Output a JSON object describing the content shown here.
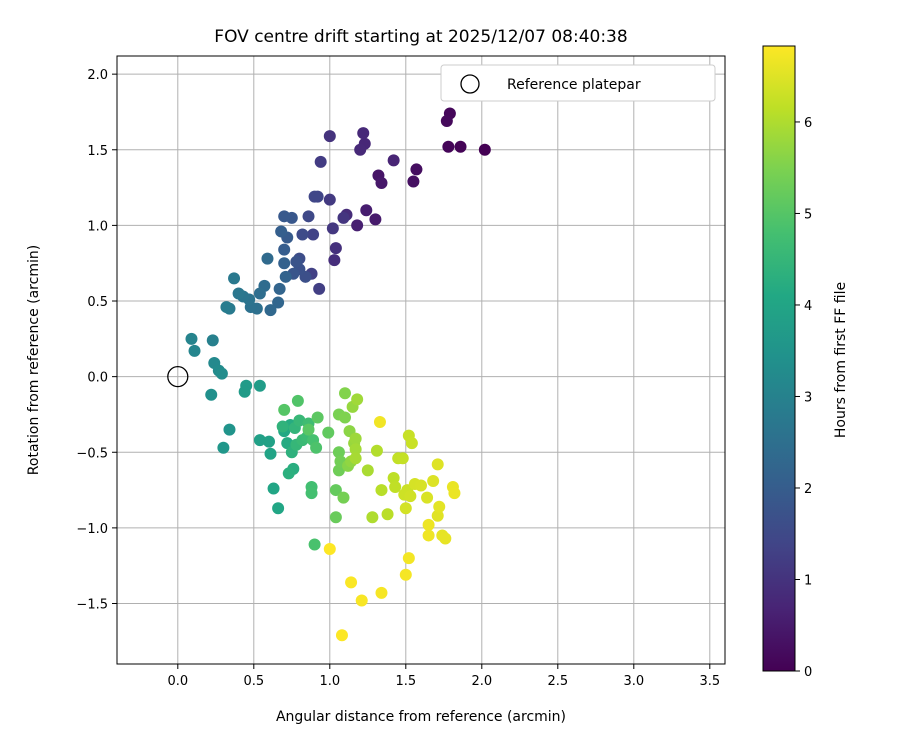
{
  "chart_data": {
    "type": "scatter",
    "title": "FOV centre drift starting at 2025/12/07 08:40:38",
    "xlabel": "Angular distance from reference (arcmin)",
    "ylabel": "Rotation from reference (arcmin)",
    "xlim": [
      -0.4,
      3.6
    ],
    "ylim": [
      -1.9,
      2.12
    ],
    "x_ticks": [
      "0.0",
      "0.5",
      "1.0",
      "1.5",
      "2.0",
      "2.5",
      "3.0",
      "3.5"
    ],
    "y_ticks": [
      "−1.5",
      "−1.0",
      "−0.5",
      "0.0",
      "0.5",
      "1.0",
      "1.5",
      "2.0"
    ],
    "grid": true,
    "legend": {
      "position": "top-right",
      "label": "Reference platepar"
    },
    "colorbar": {
      "label": "Hours from first FF file",
      "min": 0,
      "max": 6.83,
      "ticks": [
        "0",
        "1",
        "2",
        "3",
        "4",
        "5",
        "6"
      ],
      "colormap": "viridis"
    },
    "reference_point": {
      "x": 0.0,
      "y": 0.0
    },
    "series": [
      {
        "points": [
          {
            "x": 2.02,
            "y": 1.5,
            "c": 0.0
          },
          {
            "x": 1.86,
            "y": 1.52,
            "c": 0.05
          },
          {
            "x": 1.78,
            "y": 1.52,
            "c": 0.08
          },
          {
            "x": 1.79,
            "y": 1.74,
            "c": 0.12
          },
          {
            "x": 1.77,
            "y": 1.69,
            "c": 0.15
          },
          {
            "x": 1.57,
            "y": 1.37,
            "c": 0.25
          },
          {
            "x": 1.55,
            "y": 1.29,
            "c": 0.3
          },
          {
            "x": 1.32,
            "y": 1.33,
            "c": 0.4
          },
          {
            "x": 1.34,
            "y": 1.28,
            "c": 0.45
          },
          {
            "x": 1.3,
            "y": 1.04,
            "c": 0.5
          },
          {
            "x": 1.24,
            "y": 1.1,
            "c": 0.55
          },
          {
            "x": 1.18,
            "y": 1.0,
            "c": 0.6
          },
          {
            "x": 1.42,
            "y": 1.43,
            "c": 0.7
          },
          {
            "x": 1.23,
            "y": 1.54,
            "c": 0.75
          },
          {
            "x": 1.2,
            "y": 1.5,
            "c": 0.78
          },
          {
            "x": 1.22,
            "y": 1.61,
            "c": 0.8
          },
          {
            "x": 1.11,
            "y": 1.07,
            "c": 0.85
          },
          {
            "x": 1.03,
            "y": 0.77,
            "c": 0.9
          },
          {
            "x": 1.04,
            "y": 0.85,
            "c": 0.93
          },
          {
            "x": 1.0,
            "y": 1.59,
            "c": 1.0
          },
          {
            "x": 1.09,
            "y": 1.05,
            "c": 1.05
          },
          {
            "x": 1.02,
            "y": 0.98,
            "c": 1.1
          },
          {
            "x": 1.0,
            "y": 1.17,
            "c": 1.15
          },
          {
            "x": 0.94,
            "y": 1.42,
            "c": 1.2
          },
          {
            "x": 0.93,
            "y": 0.58,
            "c": 1.25
          },
          {
            "x": 0.88,
            "y": 0.68,
            "c": 1.3
          },
          {
            "x": 0.89,
            "y": 0.94,
            "c": 1.35
          },
          {
            "x": 0.92,
            "y": 1.19,
            "c": 1.4
          },
          {
            "x": 0.9,
            "y": 1.19,
            "c": 1.45
          },
          {
            "x": 0.86,
            "y": 1.06,
            "c": 1.5
          },
          {
            "x": 0.82,
            "y": 0.94,
            "c": 1.55
          },
          {
            "x": 0.8,
            "y": 0.78,
            "c": 1.6
          },
          {
            "x": 0.84,
            "y": 0.66,
            "c": 1.65
          },
          {
            "x": 0.8,
            "y": 0.71,
            "c": 1.7
          },
          {
            "x": 0.78,
            "y": 0.76,
            "c": 1.75
          },
          {
            "x": 0.76,
            "y": 0.68,
            "c": 1.8
          },
          {
            "x": 0.75,
            "y": 1.05,
            "c": 1.85
          },
          {
            "x": 0.7,
            "y": 1.06,
            "c": 1.9
          },
          {
            "x": 0.72,
            "y": 0.92,
            "c": 1.95
          },
          {
            "x": 0.7,
            "y": 0.84,
            "c": 2.0
          },
          {
            "x": 0.68,
            "y": 0.96,
            "c": 2.05
          },
          {
            "x": 0.7,
            "y": 0.75,
            "c": 2.1
          },
          {
            "x": 0.71,
            "y": 0.66,
            "c": 2.15
          },
          {
            "x": 0.67,
            "y": 0.58,
            "c": 2.2
          },
          {
            "x": 0.66,
            "y": 0.49,
            "c": 2.25
          },
          {
            "x": 0.61,
            "y": 0.44,
            "c": 2.3
          },
          {
            "x": 0.59,
            "y": 0.78,
            "c": 2.35
          },
          {
            "x": 0.57,
            "y": 0.6,
            "c": 2.4
          },
          {
            "x": 0.54,
            "y": 0.55,
            "c": 2.45
          },
          {
            "x": 0.52,
            "y": 0.45,
            "c": 2.5
          },
          {
            "x": 0.48,
            "y": 0.46,
            "c": 2.55
          },
          {
            "x": 0.47,
            "y": 0.51,
            "c": 2.6
          },
          {
            "x": 0.43,
            "y": 0.53,
            "c": 2.65
          },
          {
            "x": 0.4,
            "y": 0.55,
            "c": 2.7
          },
          {
            "x": 0.37,
            "y": 0.65,
            "c": 2.75
          },
          {
            "x": 0.34,
            "y": 0.45,
            "c": 2.8
          },
          {
            "x": 0.32,
            "y": 0.46,
            "c": 2.85
          },
          {
            "x": 0.23,
            "y": 0.24,
            "c": 2.95
          },
          {
            "x": 0.09,
            "y": 0.25,
            "c": 3.05
          },
          {
            "x": 0.11,
            "y": 0.17,
            "c": 3.1
          },
          {
            "x": 0.24,
            "y": 0.09,
            "c": 3.2
          },
          {
            "x": 0.27,
            "y": 0.04,
            "c": 3.25
          },
          {
            "x": 0.29,
            "y": 0.02,
            "c": 3.3
          },
          {
            "x": 0.22,
            "y": -0.12,
            "c": 3.4
          },
          {
            "x": 0.34,
            "y": -0.35,
            "c": 3.5
          },
          {
            "x": 0.3,
            "y": -0.47,
            "c": 3.6
          },
          {
            "x": 0.45,
            "y": -0.06,
            "c": 3.7
          },
          {
            "x": 0.44,
            "y": -0.1,
            "c": 3.72
          },
          {
            "x": 0.54,
            "y": -0.06,
            "c": 3.75
          },
          {
            "x": 0.54,
            "y": -0.42,
            "c": 3.85
          },
          {
            "x": 0.6,
            "y": -0.43,
            "c": 3.9
          },
          {
            "x": 0.61,
            "y": -0.51,
            "c": 3.95
          },
          {
            "x": 0.63,
            "y": -0.74,
            "c": 4.0
          },
          {
            "x": 0.66,
            "y": -0.87,
            "c": 4.05
          },
          {
            "x": 0.7,
            "y": -0.36,
            "c": 4.1
          },
          {
            "x": 0.72,
            "y": -0.44,
            "c": 4.15
          },
          {
            "x": 0.74,
            "y": -0.32,
            "c": 4.2
          },
          {
            "x": 0.76,
            "y": -0.61,
            "c": 4.25
          },
          {
            "x": 0.73,
            "y": -0.64,
            "c": 4.3
          },
          {
            "x": 0.75,
            "y": -0.5,
            "c": 4.35
          },
          {
            "x": 0.69,
            "y": -0.33,
            "c": 4.4
          },
          {
            "x": 0.77,
            "y": -0.34,
            "c": 4.45
          },
          {
            "x": 0.78,
            "y": -0.45,
            "c": 4.5
          },
          {
            "x": 0.8,
            "y": -0.29,
            "c": 4.55
          },
          {
            "x": 0.82,
            "y": -0.42,
            "c": 4.6
          },
          {
            "x": 0.85,
            "y": -0.4,
            "c": 4.65
          },
          {
            "x": 0.86,
            "y": -0.31,
            "c": 4.7
          },
          {
            "x": 0.88,
            "y": -0.73,
            "c": 4.75
          },
          {
            "x": 0.88,
            "y": -0.77,
            "c": 4.78
          },
          {
            "x": 0.89,
            "y": -0.42,
            "c": 4.8
          },
          {
            "x": 0.9,
            "y": -1.11,
            "c": 4.85
          },
          {
            "x": 0.91,
            "y": -0.47,
            "c": 4.9
          },
          {
            "x": 0.79,
            "y": -0.16,
            "c": 4.95
          },
          {
            "x": 0.7,
            "y": -0.22,
            "c": 5.0
          },
          {
            "x": 0.86,
            "y": -0.35,
            "c": 5.05
          },
          {
            "x": 0.92,
            "y": -0.27,
            "c": 5.1
          },
          {
            "x": 0.99,
            "y": -0.37,
            "c": 5.15
          },
          {
            "x": 1.04,
            "y": -0.75,
            "c": 5.2
          },
          {
            "x": 1.04,
            "y": -0.93,
            "c": 5.25
          },
          {
            "x": 1.06,
            "y": -0.5,
            "c": 5.3
          },
          {
            "x": 1.06,
            "y": -0.62,
            "c": 5.33
          },
          {
            "x": 1.07,
            "y": -0.56,
            "c": 5.36
          },
          {
            "x": 1.09,
            "y": -0.8,
            "c": 5.4
          },
          {
            "x": 1.06,
            "y": -0.25,
            "c": 5.45
          },
          {
            "x": 1.1,
            "y": -0.27,
            "c": 5.5
          },
          {
            "x": 1.1,
            "y": -0.11,
            "c": 5.55
          },
          {
            "x": 1.12,
            "y": -0.59,
            "c": 5.6
          },
          {
            "x": 1.13,
            "y": -0.36,
            "c": 5.65
          },
          {
            "x": 1.14,
            "y": -0.56,
            "c": 5.7
          },
          {
            "x": 1.15,
            "y": -0.2,
            "c": 5.75
          },
          {
            "x": 1.16,
            "y": -0.44,
            "c": 5.78
          },
          {
            "x": 1.17,
            "y": -0.41,
            "c": 5.82
          },
          {
            "x": 1.18,
            "y": -0.15,
            "c": 5.85
          },
          {
            "x": 1.17,
            "y": -0.48,
            "c": 5.88
          },
          {
            "x": 1.17,
            "y": -0.54,
            "c": 5.92
          },
          {
            "x": 1.25,
            "y": -0.62,
            "c": 5.95
          },
          {
            "x": 1.28,
            "y": -0.93,
            "c": 6.0
          },
          {
            "x": 1.31,
            "y": -0.49,
            "c": 6.05
          },
          {
            "x": 1.34,
            "y": -0.75,
            "c": 6.1
          },
          {
            "x": 1.38,
            "y": -0.91,
            "c": 6.12
          },
          {
            "x": 1.42,
            "y": -0.67,
            "c": 6.15
          },
          {
            "x": 1.43,
            "y": -0.73,
            "c": 6.18
          },
          {
            "x": 1.45,
            "y": -0.54,
            "c": 6.2
          },
          {
            "x": 1.48,
            "y": -0.54,
            "c": 6.22
          },
          {
            "x": 1.52,
            "y": -0.39,
            "c": 6.25
          },
          {
            "x": 1.54,
            "y": -0.44,
            "c": 6.28
          },
          {
            "x": 1.51,
            "y": -0.75,
            "c": 6.3
          },
          {
            "x": 1.49,
            "y": -0.78,
            "c": 6.32
          },
          {
            "x": 1.53,
            "y": -0.79,
            "c": 6.35
          },
          {
            "x": 1.5,
            "y": -0.87,
            "c": 6.38
          },
          {
            "x": 1.56,
            "y": -0.71,
            "c": 6.4
          },
          {
            "x": 1.6,
            "y": -0.72,
            "c": 6.42
          },
          {
            "x": 1.64,
            "y": -0.8,
            "c": 6.45
          },
          {
            "x": 1.68,
            "y": -0.69,
            "c": 6.48
          },
          {
            "x": 1.71,
            "y": -0.58,
            "c": 6.5
          },
          {
            "x": 1.71,
            "y": -0.92,
            "c": 6.52
          },
          {
            "x": 1.72,
            "y": -0.86,
            "c": 6.55
          },
          {
            "x": 1.74,
            "y": -1.05,
            "c": 6.58
          },
          {
            "x": 1.76,
            "y": -1.07,
            "c": 6.6
          },
          {
            "x": 1.81,
            "y": -0.73,
            "c": 6.62
          },
          {
            "x": 1.82,
            "y": -0.77,
            "c": 6.64
          },
          {
            "x": 1.65,
            "y": -0.98,
            "c": 6.66
          },
          {
            "x": 1.65,
            "y": -1.05,
            "c": 6.68
          },
          {
            "x": 1.33,
            "y": -0.3,
            "c": 6.7
          },
          {
            "x": 1.52,
            "y": -1.2,
            "c": 6.72
          },
          {
            "x": 1.5,
            "y": -1.31,
            "c": 6.74
          },
          {
            "x": 1.34,
            "y": -1.43,
            "c": 6.76
          },
          {
            "x": 1.21,
            "y": -1.48,
            "c": 6.78
          },
          {
            "x": 1.14,
            "y": -1.36,
            "c": 6.8
          },
          {
            "x": 1.08,
            "y": -1.71,
            "c": 6.82
          },
          {
            "x": 1.0,
            "y": -1.14,
            "c": 6.83
          }
        ]
      }
    ]
  }
}
